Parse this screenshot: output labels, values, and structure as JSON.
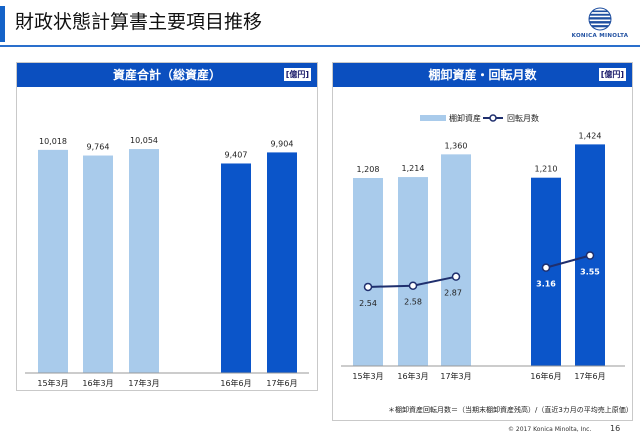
{
  "title": "財政状態計算書主要項目推移",
  "logo_text": "KONICA MINOLTA",
  "colors": {
    "light_bar": "#a9cbeb",
    "dark_bar": "#0b55c9",
    "header": "#0b4fbf",
    "line": "#1f2f6e"
  },
  "chart_data": [
    {
      "type": "bar",
      "title": "資産合計（総資産）",
      "unit": "[億円]",
      "categories": [
        "15年3月",
        "16年3月",
        "17年3月",
        "16年6月",
        "17年6月"
      ],
      "values": [
        10018,
        9764,
        10054,
        9407,
        9904
      ],
      "value_labels": [
        "10,018",
        "9,764",
        "10,054",
        "9,407",
        "9,904"
      ],
      "ylim": [
        0,
        11000
      ]
    },
    {
      "type": "bar",
      "title": "棚卸資産・回転月数",
      "unit": "[億円]",
      "categories": [
        "15年3月",
        "16年3月",
        "17年3月",
        "16年6月",
        "17年6月"
      ],
      "series": [
        {
          "name": "棚卸資産",
          "type": "bar",
          "values": [
            1208,
            1214,
            1360,
            1210,
            1424
          ],
          "labels": [
            "1,208",
            "1,214",
            "1,360",
            "1,210",
            "1,424"
          ]
        },
        {
          "name": "回転月数",
          "type": "line",
          "values": [
            2.54,
            2.58,
            2.87,
            3.16,
            3.55
          ],
          "labels": [
            "2.54",
            "2.58",
            "2.87",
            "3.16",
            "3.55"
          ]
        }
      ],
      "ylim": [
        0,
        1600
      ],
      "line_ylim": [
        0,
        8
      ],
      "legend": "top"
    }
  ],
  "footnote": "＊棚卸資産回転月数＝（当期末棚卸資産残高）/（直近3カ月の平均売上原価）",
  "copyright": "© 2017 Konica Minolta, Inc.",
  "page_number": "16"
}
